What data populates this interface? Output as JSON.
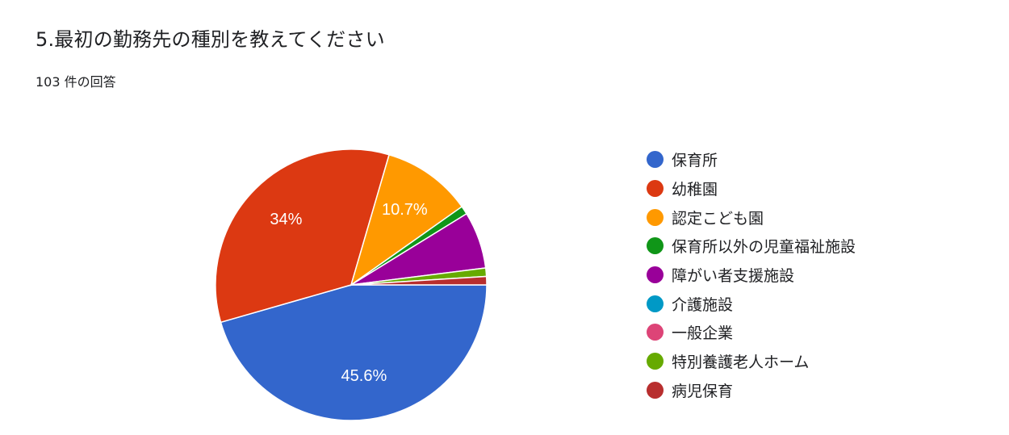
{
  "question": {
    "title": "5.最初の勤務先の種別を教えてください",
    "response_count": "103 件の回答"
  },
  "chart_data": {
    "type": "pie",
    "title": "5.最初の勤務先の種別を教えてください",
    "legend_position": "right",
    "slices": [
      {
        "label": "保育所",
        "value": 45.6,
        "display": "45.6%",
        "color": "#3366cc"
      },
      {
        "label": "幼稚園",
        "value": 34.0,
        "display": "34%",
        "color": "#dc3912"
      },
      {
        "label": "認定こども園",
        "value": 10.7,
        "display": "10.7%",
        "color": "#ff9900"
      },
      {
        "label": "保育所以外の児童福祉施設",
        "value": 1.0,
        "display": "",
        "color": "#109618"
      },
      {
        "label": "障がい者支援施設",
        "value": 6.8,
        "display": "",
        "color": "#990099"
      },
      {
        "label": "介護施設",
        "value": 0.0,
        "display": "",
        "color": "#0099c6"
      },
      {
        "label": "一般企業",
        "value": 0.0,
        "display": "",
        "color": "#dd4477"
      },
      {
        "label": "特別養護老人ホーム",
        "value": 1.0,
        "display": "",
        "color": "#66aa00"
      },
      {
        "label": "病児保育",
        "value": 1.0,
        "display": "",
        "color": "#b82e2e"
      }
    ]
  }
}
